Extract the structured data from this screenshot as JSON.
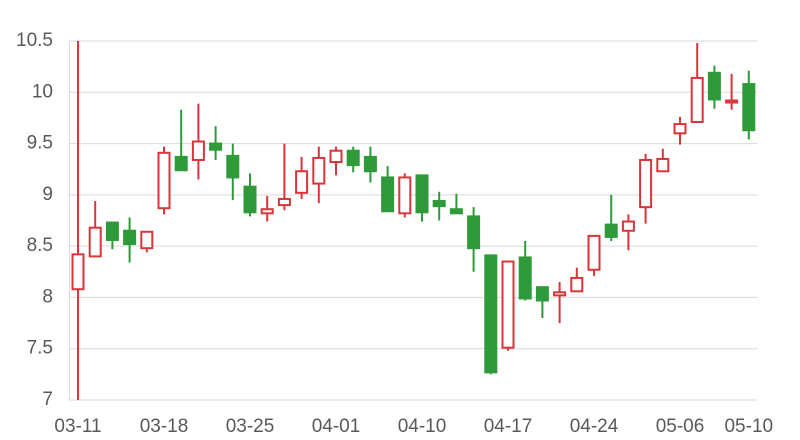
{
  "chart_data": {
    "type": "candlestick",
    "categories": [
      "03-11",
      null,
      null,
      null,
      null,
      "03-18",
      null,
      null,
      null,
      null,
      "03-25",
      null,
      null,
      null,
      null,
      "04-01",
      null,
      null,
      null,
      null,
      "04-10",
      null,
      null,
      null,
      null,
      "04-17",
      null,
      null,
      null,
      null,
      "04-24",
      null,
      null,
      null,
      null,
      "05-06",
      null,
      null,
      null,
      "05-10"
    ],
    "open": [
      8.08,
      8.4,
      8.73,
      8.65,
      8.48,
      8.87,
      9.37,
      9.34,
      9.5,
      9.38,
      9.08,
      8.82,
      8.9,
      9.02,
      9.11,
      9.32,
      9.43,
      9.37,
      9.17,
      8.82,
      9.19,
      8.94,
      8.86,
      8.79,
      8.41,
      7.51,
      8.39,
      8.1,
      8.02,
      8.06,
      8.27,
      8.71,
      8.65,
      8.88,
      9.23,
      9.6,
      9.71,
      10.19,
      9.9,
      10.08
    ],
    "high": [
      10.5,
      8.94,
      8.73,
      8.78,
      8.64,
      9.47,
      9.83,
      9.89,
      9.67,
      9.5,
      9.21,
      8.99,
      9.5,
      9.37,
      9.47,
      9.47,
      9.47,
      9.47,
      9.28,
      9.21,
      9.19,
      9.03,
      9.01,
      8.88,
      8.41,
      8.35,
      8.55,
      8.1,
      8.15,
      8.29,
      8.6,
      9.0,
      8.81,
      9.4,
      9.45,
      9.76,
      10.48,
      10.26,
      10.18,
      10.21
    ],
    "low": [
      7,
      8.4,
      8.47,
      8.34,
      8.44,
      8.81,
      9.24,
      9.15,
      9.34,
      8.95,
      8.79,
      8.74,
      8.85,
      8.96,
      8.92,
      9.19,
      9.22,
      9.12,
      8.84,
      8.78,
      8.74,
      8.75,
      8.82,
      8.25,
      7.25,
      7.48,
      7.97,
      7.8,
      7.75,
      8.06,
      8.21,
      8.55,
      8.46,
      8.72,
      9.23,
      9.49,
      9.71,
      9.84,
      9.83,
      9.54
    ],
    "close": [
      8.42,
      8.68,
      8.56,
      8.52,
      8.64,
      9.41,
      9.24,
      9.52,
      9.44,
      9.17,
      8.83,
      8.86,
      8.96,
      9.23,
      9.36,
      9.43,
      9.29,
      9.23,
      8.84,
      9.17,
      8.83,
      8.89,
      8.82,
      8.48,
      7.27,
      8.35,
      7.99,
      7.97,
      8.05,
      8.19,
      8.6,
      8.59,
      8.74,
      9.34,
      9.35,
      9.69,
      10.14,
      9.93,
      9.92,
      9.63
    ],
    "up_color": "#d9353a",
    "down_color": "#2e9a3a",
    "ylim": [
      7,
      10.5
    ],
    "yticks": [
      7,
      7.5,
      8,
      8.5,
      9,
      9.5,
      10,
      10.5
    ],
    "grid": true
  }
}
